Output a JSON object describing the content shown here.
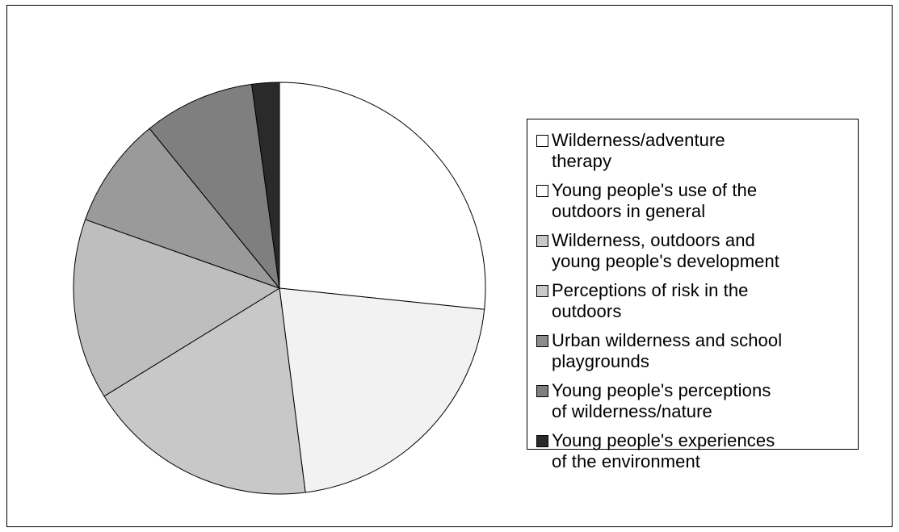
{
  "chart_data": {
    "type": "pie",
    "start_angle_deg": 0,
    "direction": "clockwise",
    "slices": [
      {
        "label": "Wilderness/adventure therapy",
        "value": 27.2,
        "color": "#ffffff"
      },
      {
        "label": "Young people's use of the outdoors in general",
        "value": 21.8,
        "color": "#f2f2f2"
      },
      {
        "label": "Wilderness, outdoors and young people's development",
        "value": 18.6,
        "color": "#c8c8c8"
      },
      {
        "label": "Perceptions of risk in the outdoors",
        "value": 14.5,
        "color": "#bebebe"
      },
      {
        "label": "Urban wilderness and school playgrounds",
        "value": 8.9,
        "color": "#9a9a9a"
      },
      {
        "label": "Young people's perceptions of wilderness/nature",
        "value": 8.9,
        "color": "#7f7f7f"
      },
      {
        "label": "Young people's experiences of the environment",
        "value": 2.2,
        "color": "#2a2a2a"
      }
    ],
    "legend": {
      "placement": "right",
      "entries": [
        {
          "label": "Wilderness/adventure\ntherapy",
          "color": "#ffffff"
        },
        {
          "label": "Young people's use of the\noutdoors in general",
          "color": "#ffffff"
        },
        {
          "label": "Wilderness, outdoors and\nyoung people's development",
          "color": "#c8c8c8"
        },
        {
          "label": "Perceptions of risk in the\noutdoors",
          "color": "#c8c8c8"
        },
        {
          "label": "Urban wilderness and school\nplaygrounds",
          "color": "#8c8c8c"
        },
        {
          "label": "Young people's perceptions\nof wilderness/nature",
          "color": "#7f7f7f"
        },
        {
          "label": "Young people's experiences\nof the environment",
          "color": "#2a2a2a"
        }
      ]
    }
  }
}
